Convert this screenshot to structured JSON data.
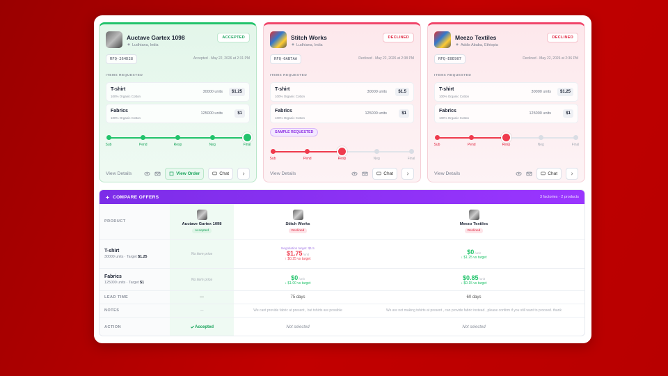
{
  "cards": [
    {
      "name": "Auctave Gartex 1098",
      "location": "Ludhiana, India",
      "status": "ACCEPTED",
      "rfq": "RFQ-264D28",
      "status_line": "Accepted · May 22, 2026 at 2:31 PM",
      "items_label": "ITEMS REQUESTED",
      "items": [
        {
          "name": "T-shirt",
          "material": "100% Organic Cotton",
          "quantity": "30000 units",
          "price": "$1.25"
        },
        {
          "name": "Fabrics",
          "material": "100% Organic Cotton",
          "quantity": "125000 units",
          "price": "$1"
        }
      ],
      "steps": [
        "Sub",
        "Pend",
        "Resp",
        "Neg",
        "Final"
      ],
      "current_step": 4,
      "theme": "green",
      "actions": {
        "details": "View Details",
        "order": "View Order",
        "chat": "Chat"
      }
    },
    {
      "name": "Stitch Works",
      "location": "Ludhiana, India",
      "status": "DECLINED",
      "rfq": "RFQ-0AB7AA",
      "status_line": "Declined · May 22, 2026 at 2:38 PM",
      "items_label": "ITEMS REQUESTED",
      "items": [
        {
          "name": "T-shirt",
          "material": "100% Organic Cotton",
          "quantity": "30000 units",
          "price": "$1.5"
        },
        {
          "name": "Fabrics",
          "material": "100% Organic Cotton",
          "quantity": "125000 units",
          "price": "$1"
        }
      ],
      "sample_badge": "SAMPLE REQUESTED",
      "steps": [
        "Sub",
        "Pend",
        "Resp",
        "Neg",
        "Final"
      ],
      "current_step": 2,
      "theme": "red",
      "actions": {
        "details": "View Details",
        "chat": "Chat"
      }
    },
    {
      "name": "Meezo Textiles",
      "location": "Addis Ababa, Ethiopia",
      "status": "DECLINED",
      "rfq": "RFQ-E0E907",
      "status_line": "Declined · May 22, 2026 at 2:36 PM",
      "items_label": "ITEMS REQUESTED",
      "items": [
        {
          "name": "T-shirt",
          "material": "100% Organic Cotton",
          "quantity": "30000 units",
          "price": "$1.25"
        },
        {
          "name": "Fabrics",
          "material": "100% Organic Cotton",
          "quantity": "125000 units",
          "price": "$1"
        }
      ],
      "steps": [
        "Sub",
        "Pend",
        "Resp",
        "Neg",
        "Final"
      ],
      "current_step": 2,
      "theme": "red",
      "actions": {
        "details": "View Details",
        "chat": "Chat"
      }
    }
  ],
  "compare": {
    "title": "COMPARE OFFERS",
    "summary": "3 factories · 2 products",
    "product_header": "PRODUCT",
    "suppliers": [
      {
        "name": "Auctave Gartex 1098",
        "status": "Accepted"
      },
      {
        "name": "Stitch Works",
        "status": "Declined"
      },
      {
        "name": "Meezo Textiles",
        "status": "Declined"
      }
    ],
    "product_rows": [
      {
        "product": "T-shirt",
        "detail": "30000 units · Target",
        "target": "$1.25",
        "cells": [
          {
            "note": "No item price"
          },
          {
            "hint": "Negotiation target: $1.5",
            "price": "$1.75",
            "unit": "/unit",
            "delta": "↑ $0.25 vs target",
            "direction": "up"
          },
          {
            "price": "$0",
            "unit": "/unit",
            "delta": "↓ $1.25 vs target",
            "direction": "down"
          }
        ]
      },
      {
        "product": "Fabrics",
        "detail": "125000 units · Target",
        "target": "$1",
        "cells": [
          {
            "note": "No item price"
          },
          {
            "price": "$0",
            "unit": "/unit",
            "delta": "↓ $1.00 vs target",
            "direction": "down"
          },
          {
            "price": "$0.85",
            "unit": "/unit",
            "delta": "↓ $0.15 vs target",
            "direction": "down"
          }
        ]
      }
    ],
    "info_rows": [
      {
        "label": "LEAD TIME",
        "cells": [
          "—",
          "75 days",
          "60 days"
        ]
      },
      {
        "label": "NOTES",
        "cells": [
          "—",
          "We cant provide fabric at present , but tshirts are possible",
          "We are not making tshirts at present , can provide fabric instead , please confirm if you still want to proceed. thank"
        ]
      },
      {
        "label": "ACTION",
        "cells": [
          "Accepted",
          "Not selected",
          "Not selected"
        ]
      }
    ]
  }
}
